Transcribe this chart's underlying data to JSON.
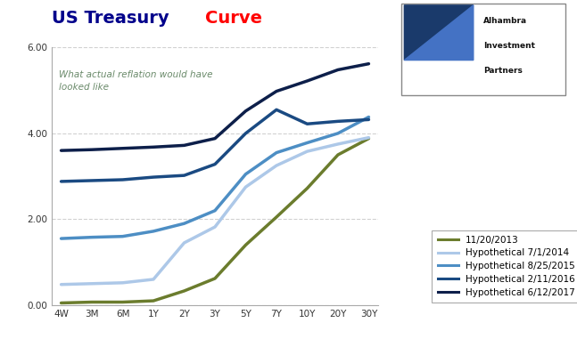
{
  "title_part1": "US Treasury ",
  "title_part2": "Curve",
  "title_color1": "#00008B",
  "title_color2": "#FF0000",
  "annotation": "What actual reflation would have\nlooked like",
  "annotation_color": "#6a8a6a",
  "x_labels": [
    "4W",
    "3M",
    "6M",
    "1Y",
    "2Y",
    "3Y",
    "5Y",
    "7Y",
    "10Y",
    "20Y",
    "30Y"
  ],
  "x_positions": [
    0,
    1,
    2,
    3,
    4,
    5,
    6,
    7,
    8,
    9,
    10
  ],
  "ylim": [
    0,
    6.0
  ],
  "yticks": [
    0.0,
    2.0,
    4.0,
    6.0
  ],
  "series": [
    {
      "label": "11/20/2013",
      "color": "#6b7c2d",
      "linewidth": 2.5,
      "values": [
        0.05,
        0.07,
        0.07,
        0.1,
        0.33,
        0.62,
        1.4,
        2.05,
        2.72,
        3.5,
        3.88
      ]
    },
    {
      "label": "Hypothetical 7/1/2014",
      "color": "#adc8e8",
      "linewidth": 2.5,
      "values": [
        0.48,
        0.5,
        0.52,
        0.6,
        1.45,
        1.82,
        2.75,
        3.25,
        3.58,
        3.75,
        3.9
      ]
    },
    {
      "label": "Hypothetical 8/25/2015",
      "color": "#4d8ec4",
      "linewidth": 2.5,
      "values": [
        1.55,
        1.58,
        1.6,
        1.72,
        1.9,
        2.2,
        3.05,
        3.55,
        3.78,
        4.0,
        4.38
      ]
    },
    {
      "label": "Hypothetical 2/11/2016",
      "color": "#1a4a82",
      "linewidth": 2.5,
      "values": [
        2.88,
        2.9,
        2.92,
        2.98,
        3.02,
        3.28,
        4.0,
        4.55,
        4.22,
        4.28,
        4.32
      ]
    },
    {
      "label": "Hypothetical 6/12/2017",
      "color": "#0d1f4a",
      "linewidth": 2.5,
      "values": [
        3.6,
        3.62,
        3.65,
        3.68,
        3.72,
        3.88,
        4.52,
        4.98,
        5.22,
        5.48,
        5.62
      ]
    }
  ],
  "background_color": "#ffffff",
  "grid_color": "#cccccc"
}
